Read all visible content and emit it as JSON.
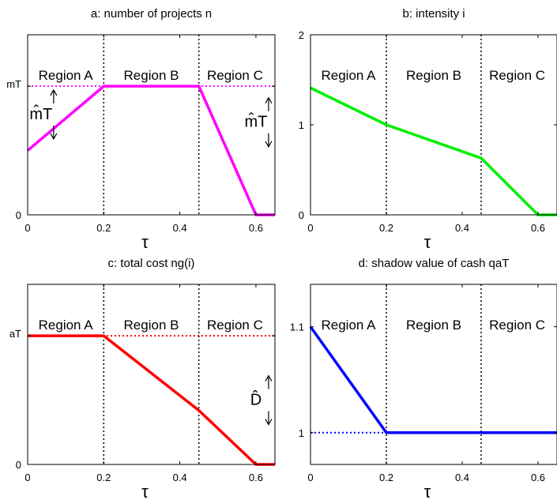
{
  "chart_data": [
    {
      "id": "a",
      "type": "line",
      "title": "a: number of projects",
      "title_hat_symbol": "n",
      "xlabel": "τ",
      "xlim": [
        0,
        0.65
      ],
      "ylim": [
        0,
        1.4
      ],
      "xticks": [
        0,
        0.2,
        0.4,
        0.6
      ],
      "xtick_labels": [
        "0",
        "0.2",
        "0.4",
        "0.6"
      ],
      "yticks": [
        0,
        1
      ],
      "ytick_labels": [
        "0",
        "mT"
      ],
      "dividers_x": [
        0.2,
        0.45
      ],
      "regions": [
        {
          "label": "Region A",
          "x": 0.1
        },
        {
          "label": "Region B",
          "x": 0.325
        },
        {
          "label": "Region C",
          "x": 0.545
        }
      ],
      "reference_line": {
        "y": 1,
        "color": "#ff00ff"
      },
      "series": [
        {
          "color": "#ff00ff",
          "x": [
            0,
            0.2,
            0.45,
            0.6,
            0.65
          ],
          "y": [
            0.5,
            1,
            1,
            0,
            0
          ]
        }
      ],
      "annotations": [
        {
          "text": "m̂T",
          "x": 0.035,
          "y": 0.78,
          "arrows": "up-down"
        },
        {
          "text": "m̂T",
          "x": 0.6,
          "y": 0.72,
          "arrows": "up-down"
        }
      ]
    },
    {
      "id": "b",
      "type": "line",
      "title": "b: intensity",
      "title_hat_symbol": "i",
      "xlabel": "τ",
      "xlim": [
        0,
        0.65
      ],
      "ylim": [
        0,
        2
      ],
      "xticks": [
        0,
        0.2,
        0.4,
        0.6
      ],
      "xtick_labels": [
        "0",
        "0.2",
        "0.4",
        "0.6"
      ],
      "yticks": [
        0,
        1,
        2
      ],
      "ytick_labels": [
        "0",
        "1",
        "2"
      ],
      "dividers_x": [
        0.2,
        0.45
      ],
      "regions": [
        {
          "label": "Region A",
          "x": 0.1
        },
        {
          "label": "Region B",
          "x": 0.325
        },
        {
          "label": "Region C",
          "x": 0.545
        }
      ],
      "reference_line": null,
      "series": [
        {
          "color": "#00ee00",
          "x": [
            0,
            0.2,
            0.45,
            0.6,
            0.65
          ],
          "y": [
            1.41,
            1,
            0.63,
            0,
            0
          ]
        }
      ],
      "annotations": []
    },
    {
      "id": "c",
      "type": "line",
      "title": "c: total cost",
      "title_hat_symbol": "ng(i)",
      "xlabel": "τ",
      "xlim": [
        0,
        0.65
      ],
      "ylim": [
        0,
        1.4
      ],
      "xticks": [
        0,
        0.2,
        0.4,
        0.6
      ],
      "xtick_labels": [
        "0",
        "0.2",
        "0.4",
        "0.6"
      ],
      "yticks": [
        0,
        1
      ],
      "ytick_labels": [
        "0",
        "aT"
      ],
      "dividers_x": [
        0.2,
        0.45
      ],
      "regions": [
        {
          "label": "Region A",
          "x": 0.1
        },
        {
          "label": "Region B",
          "x": 0.325
        },
        {
          "label": "Region C",
          "x": 0.545
        }
      ],
      "reference_line": {
        "y": 1,
        "color": "#ff0000"
      },
      "series": [
        {
          "color": "#ff0000",
          "x": [
            0,
            0.2,
            0.45,
            0.6,
            0.65
          ],
          "y": [
            1,
            1,
            0.42,
            0,
            0
          ]
        }
      ],
      "annotations": [
        {
          "text": "D̂",
          "x": 0.6,
          "y": 0.5,
          "arrows": "up-down"
        }
      ]
    },
    {
      "id": "d",
      "type": "line",
      "title": "d: shadow value of cash",
      "title_hat_symbol": "qaT",
      "xlabel": "τ",
      "xlim": [
        0,
        0.65
      ],
      "ylim": [
        0.97,
        1.14
      ],
      "xticks": [
        0,
        0.2,
        0.4,
        0.6
      ],
      "xtick_labels": [
        "0",
        "0.2",
        "0.4",
        "0.6"
      ],
      "yticks": [
        1,
        1.1
      ],
      "ytick_labels": [
        "1",
        "1.1"
      ],
      "dividers_x": [
        0.2,
        0.45
      ],
      "regions": [
        {
          "label": "Region A",
          "x": 0.1
        },
        {
          "label": "Region B",
          "x": 0.325
        },
        {
          "label": "Region C",
          "x": 0.545
        }
      ],
      "reference_line": {
        "y": 1,
        "color": "#0000ff"
      },
      "series": [
        {
          "color": "#0000ff",
          "x": [
            0,
            0.2,
            0.45,
            0.65
          ],
          "y": [
            1.1,
            1,
            1,
            1
          ]
        }
      ],
      "annotations": []
    }
  ]
}
